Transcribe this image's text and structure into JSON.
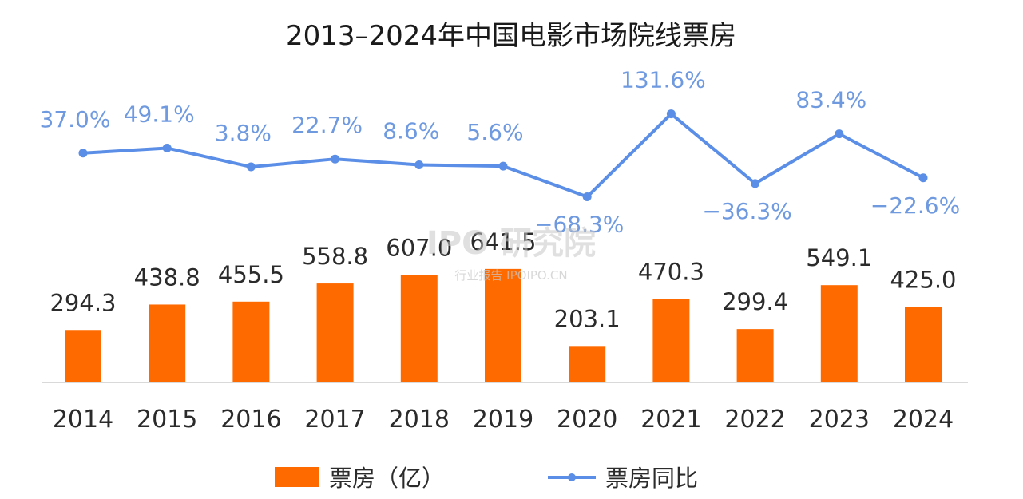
{
  "chart_data": {
    "type": "bar",
    "title": "2013–2024年中国电影市场院线票房",
    "categories": [
      "2014",
      "2015",
      "2016",
      "2017",
      "2018",
      "2019",
      "2020",
      "2021",
      "2022",
      "2023",
      "2024"
    ],
    "series": [
      {
        "name": "票房（亿）",
        "type": "bar",
        "color": "#ff6a00",
        "values": [
          294.3,
          438.8,
          455.5,
          558.8,
          607.0,
          641.5,
          203.1,
          470.3,
          299.4,
          549.1,
          425.0
        ],
        "labels": [
          "294.3",
          "438.8",
          "455.5",
          "558.8",
          "607.0",
          "641.5",
          "203.1",
          "470.3",
          "299.4",
          "549.1",
          "425.0"
        ]
      },
      {
        "name": "票房同比",
        "type": "line",
        "color": "#5b8ee6",
        "values": [
          37.0,
          49.1,
          3.8,
          22.7,
          8.6,
          5.6,
          -68.3,
          131.6,
          -36.3,
          83.4,
          -22.6
        ],
        "labels": [
          "37.0%",
          "49.1%",
          "3.8%",
          "22.7%",
          "8.6%",
          "5.6%",
          "−68.3%",
          "131.6%",
          "−36.3%",
          "83.4%",
          "−22.6%"
        ]
      }
    ],
    "ylim_bar": [
      0,
      1000
    ],
    "ylim_line": [
      -100,
      140
    ],
    "grid": false,
    "legend_position": "bottom"
  },
  "watermark": {
    "main": "IPO 研究院",
    "sub": "行业报告 IPOIPO.CN"
  }
}
